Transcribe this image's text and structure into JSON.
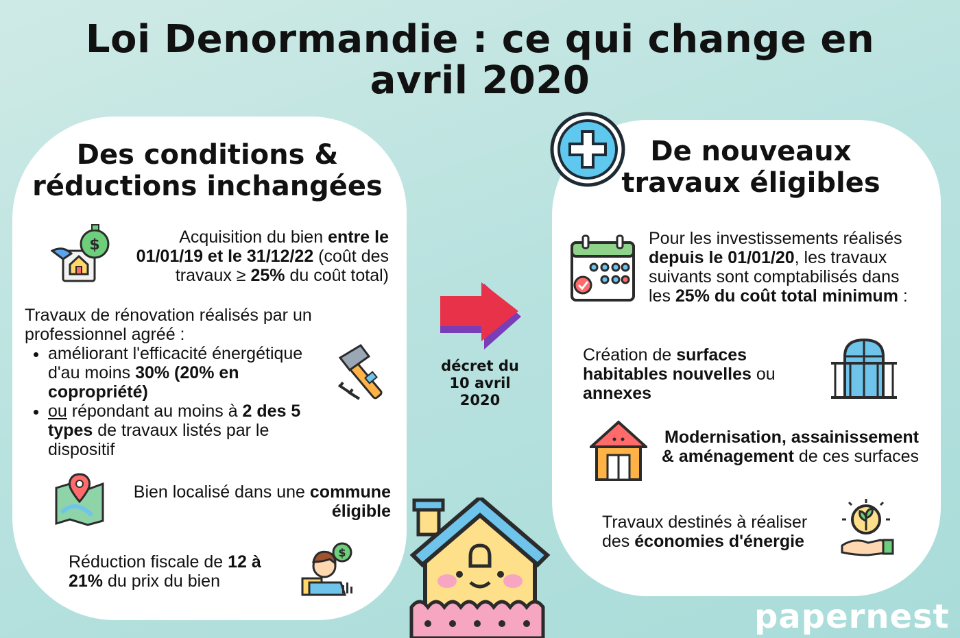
{
  "title": {
    "line1": "Loi Denormandie : ce qui change en",
    "line2": "avril  2020"
  },
  "left_panel": {
    "title_line1": "Des conditions &",
    "title_line2": "réductions inchangées",
    "acquisition": {
      "t1": "Acquisition du bien ",
      "b1": "entre le 01/01/19 et le 31/12/22",
      "t2": " (coût des travaux ≥ ",
      "b2": "25%",
      "t3": " du coût total)"
    },
    "renovation": {
      "intro": "Travaux de rénovation réalisés par un professionnel agréé :",
      "bullet1_text": "améliorant l'efficacité énergétique d'au moins ",
      "bullet1_bold": "30% (20% en copropriété)",
      "bullet2_underline": "ou",
      "bullet2_text": " répondant au moins à ",
      "bullet2_bold": "2 des 5 types",
      "bullet2_tail": " de travaux listés par le dispositif"
    },
    "location": {
      "text": "Bien localisé dans une ",
      "bold": "commune éligible"
    },
    "tax": {
      "t1": "Réduction fiscale de ",
      "bold": "12 à 21%",
      "t2": " du prix du bien"
    }
  },
  "center": {
    "decree_line1": "décret du",
    "decree_line2": "10 avril",
    "decree_line3": "2020"
  },
  "right_panel": {
    "title_line1": "De nouveaux",
    "title_line2": "travaux éligibles",
    "investments": {
      "t1": "Pour les investissements réalisés ",
      "b1": "depuis le 01/01/20",
      "t2": ", les travaux suivants sont comptabilisés dans les ",
      "b2": "25% du coût total minimum",
      "t3": " :"
    },
    "creation": {
      "t1": "Création de ",
      "b1": "surfaces habitables nouvelles",
      "t2": " ou ",
      "b2": "annexes"
    },
    "modernisation": {
      "b1": "Modernisation, assainissement & aménagement",
      "t1": " de ces surfaces"
    },
    "energy": {
      "t1": "Travaux destinés à réaliser des ",
      "b1": "économies d'énergie"
    }
  },
  "brand": {
    "logo": "papernest"
  },
  "colors": {
    "background": "#b9e2df",
    "arrow_red": "#e8324a",
    "arrow_purple": "#7a3db8",
    "plus_blue": "#5fc8ee",
    "house_yellow": "#ffe08a",
    "house_roof": "#6ec4ea",
    "fence_pink": "#f6a6c1"
  },
  "icons": [
    "money-house-icon",
    "hammer-nails-icon",
    "map-pin-icon",
    "investor-icon",
    "plus-circle-icon",
    "calendar-icon",
    "balcony-window-icon",
    "shed-icon",
    "plant-lightbulb-icon",
    "house-mascot-icon",
    "arrow-right-icon"
  ]
}
